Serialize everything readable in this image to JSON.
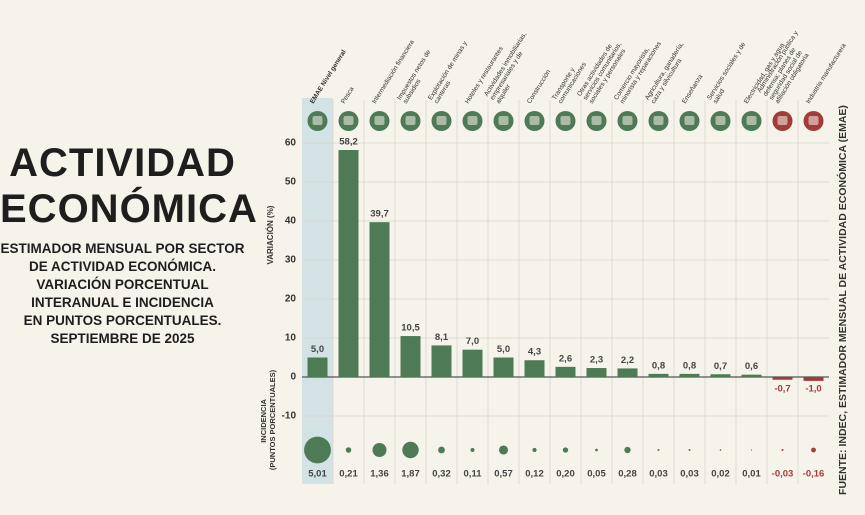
{
  "chart_data": {
    "type": "bar",
    "title": "ACTIVIDAD ECONÓMICA",
    "subtitle": [
      "ESTIMADOR MENSUAL POR SECTOR",
      "DE ACTIVIDAD ECONÓMICA.",
      "VARIACIÓN PORCENTUAL",
      "INTERANUAL E INCIDENCIA",
      "EN PUNTOS PORCENTUALES.",
      "SEPTIEMBRE DE 2025"
    ],
    "y_label": "VARIACIÓN (%)",
    "y2_label": "INCIDENCIA (PUNTOS PORCENTUALES)",
    "source": "FUENTE: INDEC, ESTIMADOR MENSUAL DE ACTIVIDAD ECONÓMICA (EMAE)",
    "categories": [
      "EMAE Nivel general",
      "Pesca",
      "Intermediación financiera",
      "Impuestos netos de subsidios",
      "Explotación de minas y canteras",
      "Hoteles y restaurantes",
      "Actividades inmobiliarias, empresariales y de alquiler",
      "Construcción",
      "Transporte y comunicaciones",
      "Otras actividades de servicios comunitarios, sociales y personales",
      "Comercio mayorista, minorista y reparaciones",
      "Agricultura, ganadería, caza y silvicultura",
      "Enseñanza",
      "Servicios sociales y de salud",
      "Electricidad, gas y agua",
      "Administración pública y defensa; planes de seguridad social de afiliación obligatoria",
      "Industria manufacturera"
    ],
    "series": [
      {
        "name": "Variación",
        "values": [
          5.0,
          58.2,
          39.7,
          10.5,
          8.1,
          7.0,
          5.0,
          4.3,
          2.6,
          2.3,
          2.2,
          0.8,
          0.8,
          0.7,
          0.6,
          -0.7,
          -1.0
        ],
        "value_labels": [
          "5,0",
          "58,2",
          "39,7",
          "10,5",
          "8,1",
          "7,0",
          "5,0",
          "4,3",
          "2,6",
          "2,3",
          "2,2",
          "0,8",
          "0,8",
          "0,7",
          "0,6",
          "-0,7",
          "-1,0"
        ]
      },
      {
        "name": "Incidencia",
        "values": [
          5.01,
          0.21,
          1.36,
          1.87,
          0.32,
          0.11,
          0.57,
          0.12,
          0.2,
          0.05,
          0.28,
          0.03,
          0.03,
          0.02,
          0.01,
          -0.03,
          -0.16
        ],
        "value_labels": [
          "5,01",
          "0,21",
          "1,36",
          "1,87",
          "0,32",
          "0,11",
          "0,57",
          "0,12",
          "0,20",
          "0,05",
          "0,28",
          "0,03",
          "0,03",
          "0,02",
          "0,01",
          "-0,03",
          "-0,16"
        ]
      }
    ],
    "positive_color": "#4f7a56",
    "negative_color": "#a23c3c",
    "highlight_color": "#c9dde3",
    "ylim": [
      -10,
      60
    ],
    "yticks": [
      60,
      50,
      40,
      30,
      20,
      10,
      0,
      -10
    ],
    "grid": true
  }
}
